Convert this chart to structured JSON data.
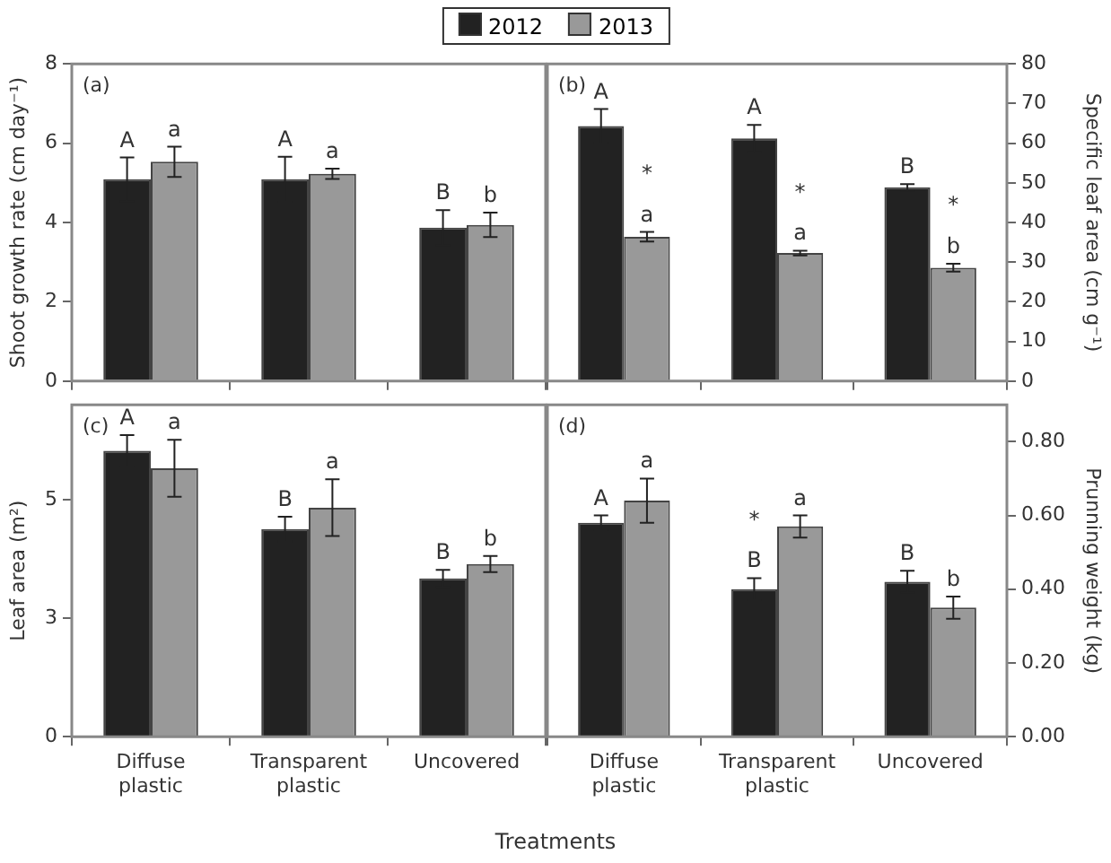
{
  "chart_data": [
    {
      "type": "bar",
      "categories": [
        null,
        null,
        null
      ],
      "ylabel": "Shoot growth rate (cm day⁻¹)",
      "ylim": [
        0,
        8
      ],
      "yticks": [
        0,
        2,
        4,
        6,
        8
      ],
      "tick_labels": "y",
      "legend": "top",
      "annotations": [
        "(a)"
      ],
      "series": [
        {
          "name": "2012",
          "color": "#222222",
          "values": [
            5.09,
            5.09,
            3.87
          ],
          "errors": [
            0.55,
            0.57,
            0.44
          ],
          "value_labels": [
            "A",
            "A",
            "B"
          ]
        },
        {
          "name": "2013",
          "color": "#999999",
          "values": [
            5.53,
            5.23,
            3.94
          ],
          "errors": [
            0.38,
            0.13,
            0.31
          ],
          "value_labels": [
            "a",
            "a",
            "b"
          ]
        }
      ]
    },
    {
      "type": "bar",
      "categories": [
        "Diffuse plastic",
        "Transparent plastic",
        "Uncovered"
      ],
      "ylabel": "Specific leaf area (cm g⁻¹)",
      "ylim": [
        0,
        80
      ],
      "yticks": [
        0,
        10,
        20,
        30,
        40,
        50,
        60,
        70,
        80
      ],
      "tick_labels": "y",
      "annotations": [
        "(b)",
        {
          "text": "*",
          "x": "Diffuse plastic",
          "y": 36.4
        },
        {
          "text": "*",
          "x": "Transparent plastic",
          "y": 32.3
        },
        {
          "text": "*",
          "x": "Uncovered",
          "y": 28.6
        }
      ],
      "series": [
        {
          "color": "#222222",
          "values": [
            64.3,
            61.2,
            48.9
          ],
          "errors": [
            4.3,
            3.4,
            0.8
          ],
          "value_labels": [
            "A",
            "A",
            "B"
          ]
        },
        {
          "color": "#999999",
          "values": [
            36.4,
            32.3,
            28.6
          ],
          "errors": [
            1.2,
            0.6,
            1.0
          ],
          "value_labels": [
            "a",
            "a",
            "b"
          ]
        }
      ]
    },
    {
      "type": "bar",
      "categories": [
        "Diffuse plastic",
        "Transparent plastic",
        "Uncovered"
      ],
      "ylabel": "Leaf area (m²)",
      "xlabel": "Treatments",
      "ylim": [
        0,
        7
      ],
      "yticks": [
        0,
        {
          "value": 2.5,
          "label": "3"
        },
        5
      ],
      "annotations": [
        "(c)"
      ],
      "series": [
        {
          "color": "#222222",
          "values": [
            6.03,
            4.38,
            3.34
          ],
          "errors": [
            0.33,
            0.26,
            0.18
          ],
          "value_labels": [
            "A",
            "B",
            "B"
          ]
        },
        {
          "color": "#999999",
          "values": [
            5.66,
            4.83,
            3.64
          ],
          "errors": [
            0.6,
            0.6,
            0.17
          ],
          "value_labels": [
            "a",
            "a",
            "b"
          ]
        }
      ]
    },
    {
      "type": "bar",
      "categories": [
        "Diffuse plastic",
        "Transparent plastic",
        "Uncovered"
      ],
      "ylabel": "Prunning weight (kg)",
      "ylim": [
        0,
        0.9
      ],
      "yticks": [
        {
          "value": 0,
          "label": "0.00"
        },
        {
          "value": 0.2,
          "label": "0.20"
        },
        {
          "value": 0.4,
          "label": "0.40"
        },
        {
          "value": 0.6,
          "label": "0.60"
        },
        {
          "value": 0.8,
          "label": "0.80"
        }
      ],
      "annotations": [
        "(d)",
        {
          "text": "*",
          "x": "Transparent plastic",
          "y": 0.4
        }
      ],
      "series": [
        {
          "color": "#222222",
          "values": [
            0.58,
            0.4,
            0.42
          ],
          "errors": [
            0.02,
            0.03,
            0.03
          ],
          "value_labels": [
            "A",
            "B",
            "B"
          ]
        },
        {
          "color": "#999999",
          "values": [
            0.64,
            0.57,
            0.35
          ],
          "errors": [
            0.06,
            0.03,
            0.03
          ],
          "value_labels": [
            "a",
            "a",
            "b"
          ]
        }
      ]
    }
  ]
}
